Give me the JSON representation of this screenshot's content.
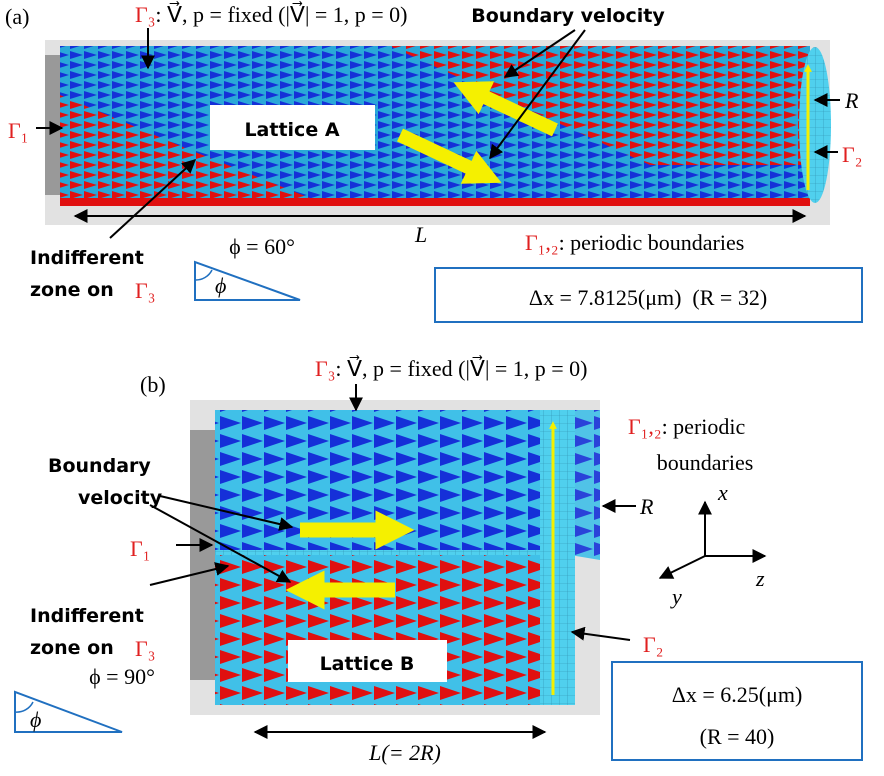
{
  "panel_a": {
    "label": "(a)",
    "gamma3": "Γ₃",
    "gamma3_condition": ": V⃗, p = fixed (|V⃗| = 1, p = 0)",
    "boundary_velocity": "Boundary velocity",
    "lattice": "Lattice A",
    "radius": "R",
    "gamma1": "Γ₁",
    "gamma2": "Γ₂",
    "length": "L",
    "indifferent_zone": [
      "Indifferent",
      "zone on"
    ],
    "indifferent_gamma": "Γ₃",
    "phi_value": "ϕ = 60°",
    "phi_symbol": "ϕ",
    "periodic_gamma": "Γ₁,₂",
    "periodic_text": ": periodic boundaries",
    "resolution": "Δx = 7.8125(μm)  (R = 32)"
  },
  "panel_b": {
    "label": "(b)",
    "gamma3": "Γ₃",
    "gamma3_condition": ": V⃗, p = fixed (|V⃗| = 1, p = 0)",
    "boundary_velocity": [
      "Boundary",
      "velocity"
    ],
    "lattice": "Lattice B",
    "radius": "R",
    "gamma1": "Γ₁",
    "gamma2": "Γ₂",
    "length": "L(= 2R)",
    "indifferent_zone": [
      "Indifferent",
      "zone on"
    ],
    "indifferent_gamma": "Γ₃",
    "phi_value": "ϕ = 90°",
    "phi_symbol": "ϕ",
    "periodic_gamma": "Γ₁,₂",
    "periodic_text": [
      ": periodic",
      "boundaries"
    ],
    "axes": {
      "x": "x",
      "y": "y",
      "z": "z"
    },
    "resolution": [
      "Δx = 6.25(μm)",
      "(R = 40)"
    ]
  }
}
